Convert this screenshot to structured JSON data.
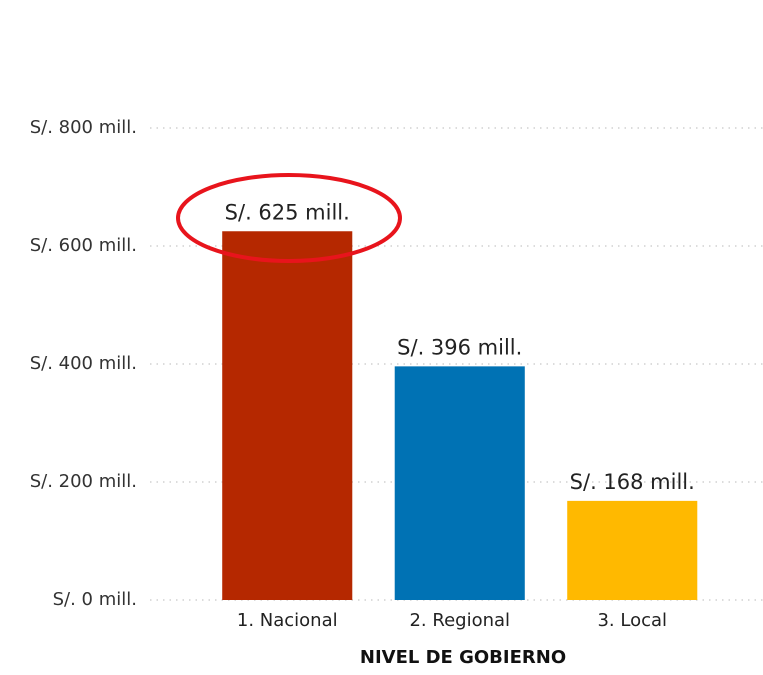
{
  "chart_data": {
    "type": "bar",
    "x_label": "NIVEL DE GOBIERNO",
    "categories": [
      "1. Nacional",
      "2. Regional",
      "3. Local"
    ],
    "values": [
      625,
      396,
      168
    ],
    "value_labels": [
      "S/. 625 mill.",
      "S/. 396 mill.",
      "S/. 168 mill."
    ],
    "colors": [
      "#b52800",
      "#0072b4",
      "#ffb900"
    ],
    "ylim": [
      0,
      800
    ],
    "yticks": [
      {
        "value": 0,
        "label": "S/. 0 mill."
      },
      {
        "value": 200,
        "label": "S/. 200 mill."
      },
      {
        "value": 400,
        "label": "S/. 400 mill."
      },
      {
        "value": 600,
        "label": "S/. 600 mill."
      },
      {
        "value": 800,
        "label": "S/. 800 mill."
      }
    ],
    "grid": true
  }
}
